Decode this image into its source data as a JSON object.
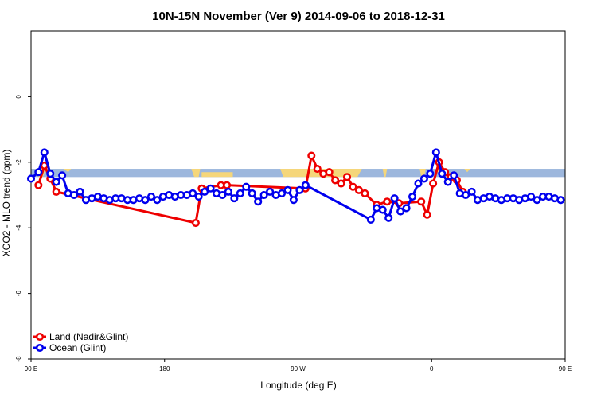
{
  "chart_data": {
    "type": "line",
    "title": "10N-15N November (Ver 9)   2014-09-06 to 2018-12-31",
    "xlabel": "Longitude (deg E)",
    "ylabel": "XCO2 - MLO trend (ppm)",
    "xlim": [
      -180,
      180
    ],
    "ylim": [
      -8,
      2
    ],
    "x_ticks": [
      {
        "value": -180,
        "label": "90 E"
      },
      {
        "value": -90,
        "label": "180"
      },
      {
        "value": 0,
        "label": "90 W"
      },
      {
        "value": 90,
        "label": "0"
      },
      {
        "value": 180,
        "label": "90 E"
      },
      {
        "value": 270,
        "label": "180"
      }
    ],
    "y_ticks": [
      {
        "value": -8,
        "label": "-8"
      },
      {
        "value": -6,
        "label": "-6"
      },
      {
        "value": -4,
        "label": "-4"
      },
      {
        "value": -2,
        "label": "-2"
      },
      {
        "value": 0,
        "label": "0"
      }
    ],
    "x_tick_values": [
      -180,
      -90,
      0,
      90,
      180
    ],
    "land_band": {
      "y_min": -2.45,
      "y_max": -2.2,
      "color": "#9db7dd",
      "land_color": "#f5d67a"
    },
    "legend_position": "bottom-left",
    "series": [
      {
        "name": "Land (Nadir&Glint)",
        "color": "#ee0000",
        "x": [
          -175,
          -171,
          -167,
          -163,
          -69,
          -65,
          -52,
          -48,
          5,
          9,
          13,
          17,
          21,
          25,
          29,
          33,
          37,
          41,
          45,
          53,
          60,
          68,
          83,
          87,
          91,
          95,
          99,
          103,
          107,
          111
        ],
        "y": [
          -2.7,
          -2.1,
          -2.5,
          -2.9,
          -3.85,
          -2.8,
          -2.7,
          -2.7,
          -2.8,
          -1.8,
          -2.2,
          -2.35,
          -2.3,
          -2.55,
          -2.65,
          -2.45,
          -2.75,
          -2.85,
          -2.95,
          -3.3,
          -3.2,
          -3.25,
          -3.2,
          -3.6,
          -2.65,
          -2.0,
          -2.3,
          -2.45,
          -2.55,
          -2.9
        ]
      },
      {
        "name": "Ocean (Glint)",
        "color": "#0000ee",
        "x": [
          -180,
          -175,
          -171,
          -167,
          -163,
          -159,
          -155,
          -151,
          -147,
          -143,
          -139,
          -135,
          -131,
          -127,
          -123,
          -119,
          -115,
          -111,
          -107,
          -103,
          -99,
          -95,
          -91,
          -87,
          -83,
          -79,
          -75,
          -71,
          -67,
          -63,
          -59,
          -55,
          -51,
          -47,
          -43,
          -39,
          -35,
          -31,
          -27,
          -23,
          -19,
          -15,
          -11,
          -7,
          -3,
          1,
          5,
          49,
          53,
          57,
          61,
          65,
          69,
          73,
          77,
          81,
          85,
          89,
          93,
          97,
          101,
          105,
          109,
          113,
          117,
          121,
          125,
          129,
          133,
          137,
          141,
          145,
          149,
          153,
          157,
          161,
          165,
          169,
          173,
          177
        ],
        "y": [
          -2.5,
          -2.3,
          -1.7,
          -2.35,
          -2.6,
          -2.4,
          -2.95,
          -3.0,
          -2.9,
          -3.15,
          -3.1,
          -3.05,
          -3.1,
          -3.15,
          -3.1,
          -3.1,
          -3.15,
          -3.15,
          -3.1,
          -3.15,
          -3.05,
          -3.15,
          -3.05,
          -3.0,
          -3.05,
          -3.0,
          -3.0,
          -2.95,
          -3.05,
          -2.9,
          -2.8,
          -2.95,
          -3.0,
          -2.9,
          -3.1,
          -2.95,
          -2.75,
          -2.95,
          -3.2,
          -3.0,
          -2.9,
          -3.0,
          -2.95,
          -2.85,
          -3.15,
          -2.85,
          -2.7,
          -3.75,
          -3.4,
          -3.45,
          -3.7,
          -3.1,
          -3.5,
          -3.4,
          -3.05,
          -2.65,
          -2.5,
          -2.35,
          -1.7,
          -2.35,
          -2.6,
          -2.4,
          -2.95,
          -3.0,
          -2.9,
          -3.15,
          -3.1,
          -3.05,
          -3.1,
          -3.15,
          -3.1,
          -3.1,
          -3.15,
          -3.1,
          -3.05,
          -3.15,
          -3.05,
          -3.05,
          -3.1,
          -3.15
        ]
      }
    ]
  }
}
